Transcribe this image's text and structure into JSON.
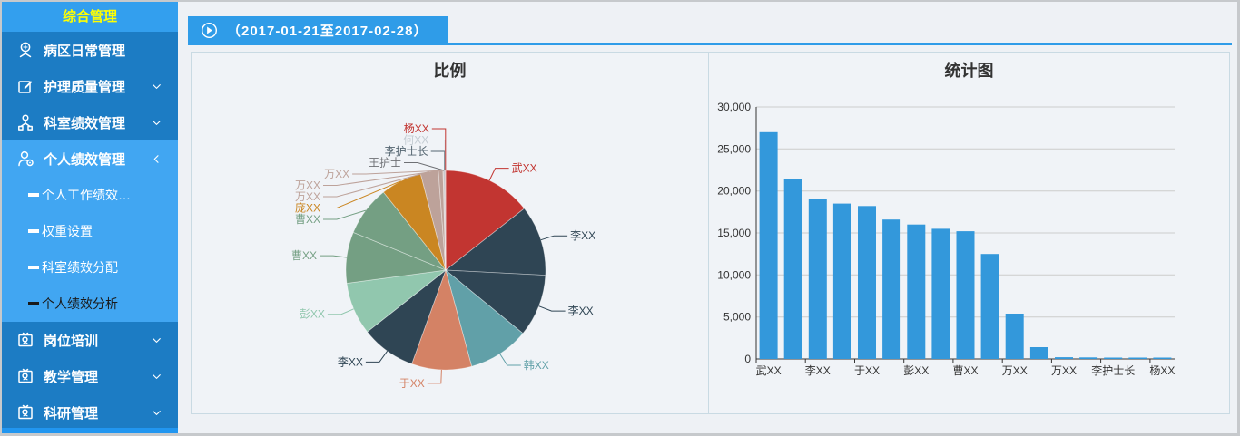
{
  "sidebar": {
    "header": "综合管理",
    "items": [
      {
        "label": "病区日常管理",
        "icon": "ward-icon",
        "chevron": null,
        "expanded": false,
        "children": []
      },
      {
        "label": "护理质量管理",
        "icon": "edit-icon",
        "chevron": "down",
        "expanded": false,
        "children": []
      },
      {
        "label": "科室绩效管理",
        "icon": "org-icon",
        "chevron": "down",
        "expanded": false,
        "children": []
      },
      {
        "label": "个人绩效管理",
        "icon": "person-icon",
        "chevron": "left",
        "expanded": true,
        "children": [
          {
            "label": "个人工作绩效…",
            "selected": false
          },
          {
            "label": "权重设置",
            "selected": false
          },
          {
            "label": "科室绩效分配",
            "selected": false
          },
          {
            "label": "个人绩效分析",
            "selected": true
          }
        ]
      },
      {
        "label": "岗位培训",
        "icon": "cert-icon",
        "chevron": "down",
        "expanded": false,
        "children": []
      },
      {
        "label": "教学管理",
        "icon": "cert-icon",
        "chevron": "down",
        "expanded": false,
        "children": []
      },
      {
        "label": "科研管理",
        "icon": "cert-icon",
        "chevron": "down",
        "expanded": false,
        "children": []
      }
    ]
  },
  "header": {
    "date_range": "（2017-01-21至2017-02-28）",
    "icon": "circle-play-icon"
  },
  "chart_data": [
    {
      "type": "pie",
      "title": "比例",
      "legend_position": "none",
      "start_angle_deg": 0,
      "direction": "clockwise",
      "series": [
        {
          "name": "武XX",
          "value": 27000,
          "color": "#c23531"
        },
        {
          "name": "李XX",
          "value": 21400,
          "color": "#2f4554"
        },
        {
          "name": "李XX",
          "value": 19000,
          "color": "#2f4554"
        },
        {
          "name": "韩XX",
          "value": 18500,
          "color": "#61a0a8"
        },
        {
          "name": "于XX",
          "value": 18200,
          "color": "#d48265"
        },
        {
          "name": "李XX",
          "value": 16600,
          "color": "#2f4554"
        },
        {
          "name": "彭XX",
          "value": 16000,
          "color": "#91c7ae"
        },
        {
          "name": "曹XX",
          "value": 15500,
          "color": "#749f83"
        },
        {
          "name": "曹XX",
          "value": 15200,
          "color": "#749f83"
        },
        {
          "name": "庞XX",
          "value": 12500,
          "color": "#ca8622"
        },
        {
          "name": "万XX",
          "value": 5400,
          "color": "#bda29a"
        },
        {
          "name": "万XX",
          "value": 1400,
          "color": "#bda29a"
        },
        {
          "name": "万XX",
          "value": 210,
          "color": "#bda29a"
        },
        {
          "name": "王护士",
          "value": 180,
          "color": "#6e7074"
        },
        {
          "name": "李护士长",
          "value": 160,
          "color": "#546570"
        },
        {
          "name": "何XX",
          "value": 140,
          "color": "#c4ccd3"
        },
        {
          "name": "杨XX",
          "value": 120,
          "color": "#c23531"
        }
      ]
    },
    {
      "type": "bar",
      "title": "统计图",
      "bar_color": "#3398db",
      "grid": true,
      "ylim": [
        0,
        30000
      ],
      "ytick_interval": 5000,
      "y_tick_labels": [
        "0",
        "5,000",
        "10,000",
        "15,000",
        "20,000",
        "25,000",
        "30,000"
      ],
      "x_label_interval": 2,
      "x_labels_shown": [
        "武XX",
        "李XX",
        "于XX",
        "彭XX",
        "曹XX",
        "万XX",
        "万XX",
        "李护士长",
        "杨XX"
      ],
      "categories": [
        "武XX",
        "李XX",
        "李XX",
        "韩XX",
        "于XX",
        "李XX",
        "彭XX",
        "曹XX",
        "曹XX",
        "庞XX",
        "万XX",
        "万XX",
        "万XX",
        "王护士",
        "李护士长",
        "何XX",
        "杨XX"
      ],
      "values": [
        27000,
        21400,
        19000,
        18500,
        18200,
        16600,
        16000,
        15500,
        15200,
        12500,
        5400,
        1400,
        210,
        180,
        160,
        140,
        120
      ]
    }
  ]
}
